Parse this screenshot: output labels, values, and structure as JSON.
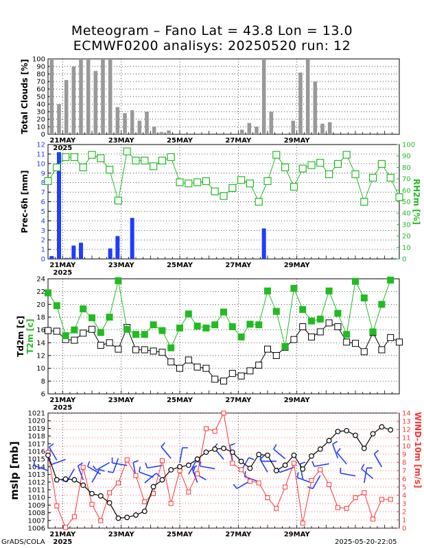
{
  "title": {
    "line1": "Meteogram – Fano Lat = 43.8 Lon = 13.0",
    "line2": "ECMWF0200 analisys: 20250520 run: 12"
  },
  "footer": {
    "left": "GrADS/COLA",
    "right": "2025-05-20-22:05"
  },
  "colors": {
    "bars_gray": "#999999",
    "bars_blue": "#1f3cff",
    "green": "#22bb22",
    "red": "#ff3333",
    "wind_blue": "#1f3cff",
    "grid": "#000000",
    "red_grid": "#ff3333"
  },
  "time_axis": {
    "n_steps": 48,
    "labels": [
      "21MAY",
      "23MAY",
      "25MAY",
      "27MAY",
      "29MAY"
    ],
    "label_steps": [
      2,
      10,
      18,
      26,
      34
    ],
    "year_label": "2025",
    "year_step": 2
  },
  "chart_data": [
    {
      "type": "bar",
      "ylabel": "Total Clouds [%]",
      "ylim": [
        0,
        100
      ],
      "yticks": [
        0,
        10,
        20,
        30,
        40,
        50,
        60,
        70,
        80,
        90,
        100
      ],
      "series": [
        {
          "values": [
            100,
            40,
            72,
            90,
            100,
            100,
            84,
            100,
            100,
            36,
            28,
            32,
            18,
            30,
            10,
            3,
            5,
            0,
            0,
            0,
            0,
            0,
            0,
            0,
            0,
            0,
            6,
            15,
            10,
            100,
            30,
            0,
            0,
            18,
            82,
            100,
            70,
            14,
            16
          ]
        }
      ]
    },
    {
      "type": "bar+line",
      "ylabel": "Prec-6h [mm]",
      "y2label": "RH2m [%]",
      "ylim": [
        0,
        12
      ],
      "yticks": [
        0,
        1,
        2,
        3,
        4,
        5,
        6,
        7,
        8,
        9,
        10,
        11,
        12
      ],
      "y2lim": [
        0,
        100
      ],
      "y2ticks": [
        0,
        10,
        20,
        30,
        40,
        50,
        60,
        70,
        80,
        90,
        100
      ],
      "precip": [
        0.3,
        11.2,
        0.1,
        1.4,
        1.7,
        0,
        0,
        0,
        1.1,
        2.4,
        0,
        4.3,
        0,
        0,
        0,
        0,
        0,
        0,
        0,
        0,
        0,
        0,
        0,
        0,
        0,
        0,
        0,
        0,
        0,
        3.2,
        0,
        0,
        0,
        0,
        0,
        0,
        0,
        0
      ],
      "rh": [
        68,
        80,
        89,
        89,
        80,
        91,
        88,
        78,
        51,
        94,
        86,
        86,
        81,
        86,
        89,
        67,
        66,
        67,
        68,
        59,
        55,
        62,
        69,
        66,
        50,
        68,
        91,
        80,
        63,
        79,
        82,
        84,
        74,
        83,
        91,
        74,
        50,
        71,
        83,
        71,
        54
      ]
    },
    {
      "type": "line",
      "ylabel": "Td2m [c]",
      "y2label": "T2m [c]",
      "ylim": [
        6,
        24
      ],
      "yticks": [
        6,
        8,
        10,
        12,
        14,
        16,
        18,
        20,
        22,
        24
      ],
      "series": [
        {
          "name": "Td2m [c]",
          "values": [
            15.9,
            15.8,
            14.5,
            14.4,
            15.5,
            16.1,
            13.6,
            14.0,
            13.0,
            16.4,
            12.9,
            12.9,
            12.7,
            12.5,
            11.0,
            10.0,
            11.3,
            10.2,
            10.0,
            8.3,
            8.0,
            9.2,
            8.8,
            9.6,
            10.5,
            13.0,
            12.0,
            13.3,
            14.5,
            16.5,
            14.9,
            15.7,
            17.1,
            16.5,
            14.1,
            13.9,
            12.6,
            15.6,
            12.9,
            14.8,
            14.1
          ]
        },
        {
          "name": "T2m [c]",
          "values": [
            21.8,
            19.8,
            15.1,
            16.0,
            19.3,
            17.9,
            15.6,
            18.0,
            23.7,
            16.1,
            15.3,
            15.3,
            16.8,
            15.9,
            13.2,
            16.3,
            18.5,
            16.6,
            16.3,
            16.8,
            18.8,
            16.5,
            14.9,
            16.9,
            16.8,
            22.1,
            18.9,
            13.4,
            22.5,
            19.2,
            17.4,
            17.7,
            22.1,
            18.6,
            15.3,
            23.6,
            21.0,
            15.7,
            20.0,
            23.8
          ]
        }
      ]
    },
    {
      "type": "line",
      "ylabel": "mslp [mb]",
      "y2label": "WIND-10m [m/s]",
      "ylim": [
        1006,
        1021
      ],
      "yticks": [
        1006,
        1007,
        1008,
        1009,
        1010,
        1011,
        1012,
        1013,
        1014,
        1015,
        1016,
        1017,
        1018,
        1019,
        1020,
        1021
      ],
      "y2lim": [
        0,
        14
      ],
      "y2ticks": [
        0,
        1,
        2,
        3,
        4,
        5,
        6,
        7,
        8,
        9,
        10,
        11,
        12,
        13,
        14
      ],
      "series": [
        {
          "name": "mslp [mb]",
          "values": [
            1015.5,
            1012.3,
            1012.4,
            1012.3,
            1011.6,
            1010.5,
            1010.2,
            1009.3,
            1007.3,
            1007.4,
            1007.7,
            1008.2,
            1011.4,
            1012.3,
            1013.6,
            1014.0,
            1014.2,
            1015.0,
            1015.9,
            1016.3,
            1016.4,
            1015.9,
            1014.7,
            1013.8,
            1015.6,
            1015.5,
            1013.5,
            1014.2,
            1015.5,
            1013.7,
            1015.4,
            1016.3,
            1017.4,
            1018.6,
            1018.7,
            1018.1,
            1016.4,
            1018.3,
            1019.2,
            1018.8
          ]
        },
        {
          "name": "WIND-10m [m/s]",
          "values": [
            9.2,
            2.7,
            0.1,
            1.4,
            7.4,
            2.9,
            0.9,
            4.3,
            5.5,
            8.3,
            6.4,
            3.2,
            4.2,
            8.2,
            3.0,
            7.0,
            4.4,
            6.6,
            12.1,
            11.8,
            14.0,
            7.9,
            7.1,
            5.7,
            5.5,
            3.7,
            2.4,
            5.0,
            7.9,
            0.6,
            5.8,
            7.1,
            5.3,
            2.5,
            2.4,
            3.7,
            4.3,
            1.1,
            3.5,
            3.5
          ]
        }
      ],
      "wind_barbs": true
    }
  ]
}
